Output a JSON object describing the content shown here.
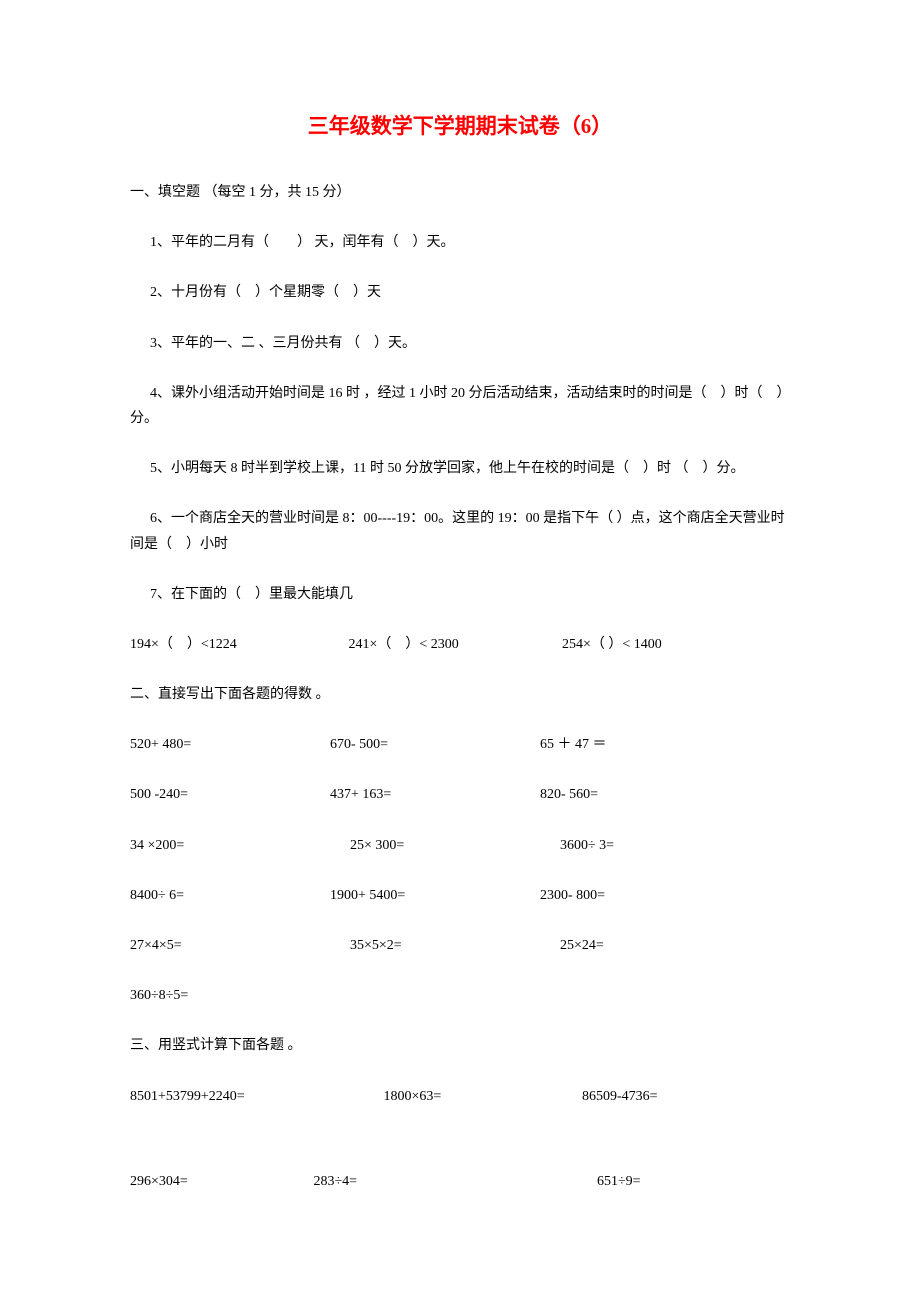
{
  "title": "三年级数学下学期期末试卷（6）",
  "section1": {
    "header": "一、填空题 （每空 1 分，共 15 分）",
    "q1": "1、平年的二月有（　　） 天，闰年有（　）天。",
    "q2": "2、十月份有（　）个星期零（　）天",
    "q3": "3、平年的一、二 、三月份共有 （　）天。",
    "q4": "4、课外小组活动开始时间是 16 时 ，经过 1 小时 20 分后活动结束，活动结束时的时间是（　）时（　）分。",
    "q5": "5、小明每天 8 时半到学校上课，11 时 50 分放学回家，他上午在校的时间是（　）时 （　）分。",
    "q6": "6、一个商店全天的营业时间是 8：00----19：00。这里的 19：00 是指下午（ ）点，这个商店全天营业时间是（　）小时",
    "q7_intro": "7、在下面的（　）里最大能填几",
    "q7_items": {
      "a": "194×（　）<1224",
      "b": "241×（　）< 2300",
      "c": "254×（ ）< 1400"
    }
  },
  "section2": {
    "header": "二、直接写出下面各题的得数 。",
    "rows": [
      {
        "a": "520+ 480=",
        "b": "670- 500=",
        "c": "65 ＋ 47 ＝"
      },
      {
        "a": "500 -240=",
        "b": "437+ 163=",
        "c": "820- 560="
      },
      {
        "a": "34 ×200=",
        "b": "25× 300=",
        "c": "3600÷ 3=",
        "offset": true
      },
      {
        "a": "8400÷ 6=",
        "b": "1900+ 5400=",
        "c": "2300- 800="
      },
      {
        "a": "27×4×5=",
        "b": "35×5×2=",
        "c": "25×24=",
        "offset": true
      },
      {
        "a": "360÷8÷5=",
        "b": "",
        "c": ""
      }
    ]
  },
  "section3": {
    "header": "三、用竖式计算下面各题 。",
    "row1": {
      "a": "8501+53799+2240=",
      "b": "1800×63=",
      "c": "86509-4736="
    },
    "row2": {
      "a": "296×304=",
      "b": "283÷4=",
      "c": "651÷9="
    }
  }
}
